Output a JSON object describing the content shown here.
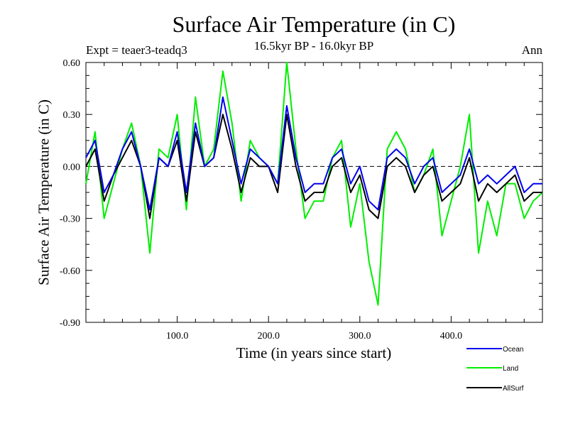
{
  "chart_data": {
    "type": "line",
    "title": "Surface Air Temperature (in C)",
    "subtitle": "16.5kyr BP - 16.0kyr BP",
    "annotation_left": "Expt = teaer3-teadq3",
    "annotation_right": "Ann",
    "xlabel": "Time (in years since start)",
    "ylabel": "Surface Air Temperature (in C)",
    "xlim": [
      0,
      500
    ],
    "ylim": [
      -0.9,
      0.6
    ],
    "xticks": [
      100,
      200,
      300,
      400
    ],
    "xtick_labels": [
      "100.0",
      "200.0",
      "300.0",
      "400.0"
    ],
    "yticks": [
      -0.9,
      -0.6,
      -0.3,
      0.0,
      0.3,
      0.6
    ],
    "ytick_labels": [
      "-0.90",
      "-0.60",
      "-0.30",
      "0.00",
      "0.30",
      "0.60"
    ],
    "zero_line": true,
    "series": [
      {
        "name": "Land",
        "color": "#00ee00",
        "x_start": 0,
        "x_step": 10,
        "values": [
          -0.1,
          0.2,
          -0.3,
          -0.1,
          0.1,
          0.25,
          0.0,
          -0.5,
          0.1,
          0.05,
          0.3,
          -0.25,
          0.4,
          0.0,
          0.1,
          0.55,
          0.25,
          -0.2,
          0.15,
          0.05,
          0.0,
          -0.1,
          0.6,
          0.1,
          -0.3,
          -0.2,
          -0.2,
          0.05,
          0.15,
          -0.35,
          -0.1,
          -0.55,
          -0.8,
          0.1,
          0.2,
          0.1,
          -0.15,
          -0.05,
          0.1,
          -0.4,
          -0.2,
          0.0,
          0.3,
          -0.5,
          -0.2,
          -0.4,
          -0.1,
          -0.1,
          -0.3,
          -0.2,
          -0.15
        ]
      },
      {
        "name": "Ocean",
        "color": "#0000ee",
        "x_start": 0,
        "x_step": 10,
        "values": [
          0.05,
          0.15,
          -0.15,
          -0.05,
          0.1,
          0.2,
          0.0,
          -0.25,
          0.05,
          0.0,
          0.2,
          -0.15,
          0.25,
          0.0,
          0.05,
          0.4,
          0.15,
          -0.1,
          0.1,
          0.05,
          0.0,
          -0.1,
          0.35,
          0.05,
          -0.15,
          -0.1,
          -0.1,
          0.05,
          0.1,
          -0.1,
          0.0,
          -0.2,
          -0.25,
          0.05,
          0.1,
          0.05,
          -0.1,
          0.0,
          0.05,
          -0.15,
          -0.1,
          -0.05,
          0.1,
          -0.1,
          -0.05,
          -0.1,
          -0.05,
          0.0,
          -0.15,
          -0.1,
          -0.1
        ]
      },
      {
        "name": "AllSurf",
        "color": "#000000",
        "x_start": 0,
        "x_step": 10,
        "values": [
          0.0,
          0.1,
          -0.2,
          -0.05,
          0.05,
          0.15,
          0.0,
          -0.3,
          0.05,
          0.0,
          0.15,
          -0.2,
          0.2,
          0.0,
          0.05,
          0.3,
          0.1,
          -0.15,
          0.05,
          0.0,
          0.0,
          -0.15,
          0.3,
          0.0,
          -0.2,
          -0.15,
          -0.15,
          0.0,
          0.05,
          -0.15,
          -0.05,
          -0.25,
          -0.3,
          0.0,
          0.05,
          0.0,
          -0.15,
          -0.05,
          0.0,
          -0.2,
          -0.15,
          -0.1,
          0.05,
          -0.2,
          -0.1,
          -0.15,
          -0.1,
          -0.05,
          -0.2,
          -0.15,
          -0.15
        ]
      }
    ],
    "legend": [
      "Ocean",
      "Land",
      "AllSurf"
    ],
    "legend_position": "bottom-right"
  }
}
